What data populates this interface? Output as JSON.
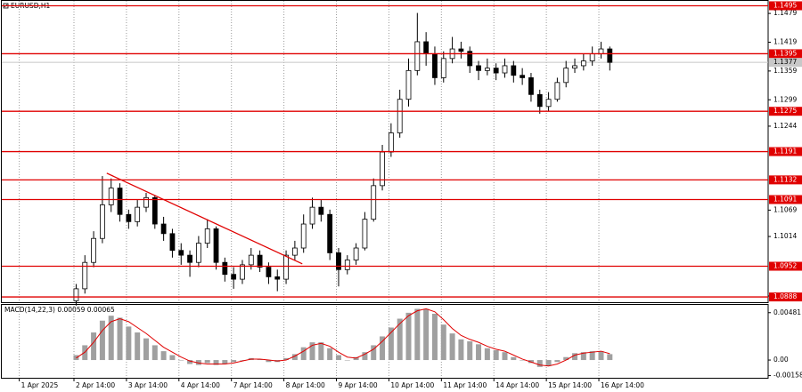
{
  "chart_data": [
    {
      "type": "candlestick",
      "title": "EURUSD,H1",
      "x": [
        32,
        36,
        40,
        44,
        48,
        52,
        56,
        60,
        64,
        68,
        72,
        76,
        80,
        84,
        88,
        92,
        96,
        100,
        104,
        108,
        112,
        116,
        120,
        124,
        128,
        132,
        136,
        140,
        144,
        148,
        152,
        156,
        160,
        164,
        168,
        172,
        176,
        180,
        184,
        188,
        192,
        196,
        200,
        204,
        208,
        212,
        216,
        220,
        224,
        228,
        232,
        236,
        240,
        244,
        248,
        252,
        256,
        260,
        264,
        268,
        272,
        276
      ],
      "open": [
        1.088,
        1.0905,
        1.096,
        1.101,
        1.108,
        1.1115,
        1.106,
        1.1045,
        1.1075,
        1.1095,
        1.104,
        1.102,
        1.0985,
        1.0975,
        1.096,
        1.1,
        1.103,
        1.096,
        1.0935,
        1.0925,
        1.0955,
        1.0975,
        1.095,
        1.093,
        1.0925,
        1.0975,
        1.099,
        1.104,
        1.1075,
        1.106,
        1.098,
        1.0945,
        1.0965,
        1.099,
        1.105,
        1.112,
        1.119,
        1.123,
        1.13,
        1.136,
        1.142,
        1.1395,
        1.1345,
        1.1385,
        1.1405,
        1.14,
        1.137,
        1.136,
        1.1365,
        1.1355,
        1.137,
        1.135,
        1.1345,
        1.131,
        1.1285,
        1.13,
        1.1335,
        1.1365,
        1.137,
        1.138,
        1.1395,
        1.1405
      ],
      "high": [
        1.0915,
        1.0975,
        1.1025,
        1.114,
        1.1135,
        1.1125,
        1.107,
        1.109,
        1.1105,
        1.11,
        1.1055,
        1.103,
        1.1,
        1.0985,
        1.1015,
        1.105,
        1.1035,
        1.097,
        1.095,
        1.0965,
        1.099,
        1.0985,
        1.096,
        1.0945,
        1.0985,
        1.1005,
        1.106,
        1.1095,
        1.109,
        1.107,
        1.099,
        1.0975,
        1.1,
        1.1065,
        1.1135,
        1.1205,
        1.125,
        1.132,
        1.1385,
        1.148,
        1.144,
        1.141,
        1.14,
        1.143,
        1.142,
        1.141,
        1.138,
        1.1385,
        1.1375,
        1.1385,
        1.138,
        1.1365,
        1.1355,
        1.132,
        1.1315,
        1.1345,
        1.138,
        1.1385,
        1.1395,
        1.141,
        1.142,
        1.141
      ],
      "low": [
        1.087,
        1.0895,
        1.095,
        1.1,
        1.1065,
        1.1045,
        1.103,
        1.1035,
        1.1065,
        1.103,
        1.1005,
        1.097,
        1.0955,
        1.093,
        1.095,
        1.099,
        1.0945,
        1.092,
        1.0905,
        1.0915,
        1.0945,
        1.094,
        1.0915,
        1.09,
        1.0915,
        1.0965,
        1.098,
        1.103,
        1.1045,
        1.0965,
        1.091,
        1.0935,
        1.0955,
        1.0985,
        1.1045,
        1.111,
        1.118,
        1.122,
        1.1285,
        1.135,
        1.137,
        1.133,
        1.1335,
        1.1375,
        1.1385,
        1.1355,
        1.134,
        1.135,
        1.134,
        1.1345,
        1.1335,
        1.133,
        1.1295,
        1.127,
        1.1275,
        1.1295,
        1.1325,
        1.1355,
        1.136,
        1.137,
        1.1385,
        1.136
      ],
      "close": [
        1.0905,
        1.096,
        1.101,
        1.108,
        1.1115,
        1.106,
        1.1045,
        1.1075,
        1.1095,
        1.104,
        1.102,
        1.0985,
        1.0975,
        1.096,
        1.1,
        1.103,
        1.096,
        1.0935,
        1.0925,
        1.0955,
        1.0975,
        1.095,
        1.093,
        1.0925,
        1.0975,
        1.099,
        1.104,
        1.1075,
        1.106,
        1.098,
        1.0945,
        1.0965,
        1.099,
        1.105,
        1.112,
        1.119,
        1.123,
        1.13,
        1.136,
        1.142,
        1.1395,
        1.1345,
        1.1385,
        1.1405,
        1.14,
        1.137,
        1.136,
        1.1365,
        1.1355,
        1.137,
        1.135,
        1.1345,
        1.131,
        1.1285,
        1.13,
        1.1335,
        1.1365,
        1.137,
        1.138,
        1.1395,
        1.1405,
        1.1377
      ],
      "xlim": [
        -2,
        348.4
      ],
      "ylim": [
        1.0877,
        1.1507
      ],
      "xticks": [
        {
          "value": 6,
          "label": "1 Apr 2025"
        },
        {
          "value": 31,
          "label": "2 Apr 14:00"
        },
        {
          "value": 55,
          "label": "3 Apr 14:00"
        },
        {
          "value": 79,
          "label": "4 Apr 14:00"
        },
        {
          "value": 103,
          "label": "7 Apr 14:00"
        },
        {
          "value": 127,
          "label": "8 Apr 14:00"
        },
        {
          "value": 151,
          "label": "9 Apr 14:00"
        },
        {
          "value": 175,
          "label": "10 Apr 14:00"
        },
        {
          "value": 199,
          "label": "11 Apr 14:00"
        },
        {
          "value": 223,
          "label": "14 Apr 14:00"
        },
        {
          "value": 247,
          "label": "15 Apr 14:00"
        },
        {
          "value": 271,
          "label": "16 Apr 14:00"
        }
      ],
      "yticks": [
        1.1479,
        1.1419,
        1.1359,
        1.1299,
        1.1244,
        1.1069,
        1.1014,
        {
          "value": 1.089,
          "label": "1.0890"
        }
      ],
      "levels": [
        1.1495,
        1.1395,
        1.1275,
        1.1191,
        1.1132,
        1.1091,
        1.0952,
        1.0888
      ],
      "level_color": "#e00000",
      "current_price": 1.1377,
      "trendline": {
        "x": [
          46,
          135.4
        ],
        "y": [
          1.1146,
          1.0957
        ]
      },
      "grid": true
    },
    {
      "type": "macd",
      "title": "MACD(14,22,3) 0.00059 0.00065",
      "x": [
        32,
        36,
        40,
        44,
        48,
        52,
        56,
        60,
        64,
        68,
        72,
        76,
        80,
        84,
        88,
        92,
        96,
        100,
        104,
        108,
        112,
        116,
        120,
        124,
        128,
        132,
        136,
        140,
        144,
        148,
        152,
        156,
        160,
        164,
        168,
        172,
        176,
        180,
        184,
        188,
        192,
        196,
        200,
        204,
        208,
        212,
        216,
        220,
        224,
        228,
        232,
        236,
        240,
        244,
        248,
        252,
        256,
        260,
        264,
        268,
        272,
        276
      ],
      "histogram": [
        0.0005,
        0.0015,
        0.0028,
        0.004,
        0.0045,
        0.0043,
        0.0034,
        0.0028,
        0.0022,
        0.0015,
        0.0009,
        0.0005,
        0.0,
        -0.0004,
        -0.0005,
        -0.0003,
        -0.0005,
        -0.0004,
        -0.0002,
        0.0,
        0.0002,
        0.0001,
        -0.0002,
        -0.0002,
        0.0002,
        0.0006,
        0.0013,
        0.0018,
        0.0018,
        0.0012,
        0.0005,
        0.0,
        0.0003,
        0.0008,
        0.0015,
        0.0024,
        0.0033,
        0.0042,
        0.0048,
        0.0052,
        0.0052,
        0.0047,
        0.0036,
        0.0027,
        0.0021,
        0.0019,
        0.0016,
        0.0012,
        0.001,
        0.0008,
        0.0003,
        0.0,
        -0.0003,
        -0.0007,
        -0.0006,
        -0.0002,
        0.0003,
        0.0007,
        0.0008,
        0.0009,
        0.0009,
        0.0006
      ],
      "signal": [
        0.0002,
        0.0008,
        0.0018,
        0.003,
        0.0039,
        0.0042,
        0.0039,
        0.0033,
        0.0027,
        0.002,
        0.0013,
        0.0008,
        0.0003,
        -0.0001,
        -0.0003,
        -0.0004,
        -0.0004,
        -0.0004,
        -0.0003,
        -0.0001,
        0.0001,
        0.0001,
        0.0,
        -0.0001,
        0.0,
        0.0004,
        0.0009,
        0.0015,
        0.0017,
        0.0014,
        0.0008,
        0.0003,
        0.0002,
        0.0006,
        0.0011,
        0.0019,
        0.0028,
        0.0037,
        0.0045,
        0.005,
        0.0052,
        0.0049,
        0.0041,
        0.0032,
        0.0025,
        0.0021,
        0.0018,
        0.0014,
        0.0011,
        0.0009,
        0.0005,
        0.0001,
        -0.0002,
        -0.0005,
        -0.0006,
        -0.0004,
        0.0,
        0.0005,
        0.0007,
        0.0008,
        0.0009,
        0.00065
      ],
      "histogram_color": "#a0a0a0",
      "signal_color": "#e00000",
      "xlim": [
        -2,
        348.4
      ],
      "ylim": [
        -0.0018,
        0.0056
      ],
      "yticks": [
        0.00481,
        {
          "value": 0,
          "label": "0.00"
        },
        -0.00158
      ]
    }
  ]
}
